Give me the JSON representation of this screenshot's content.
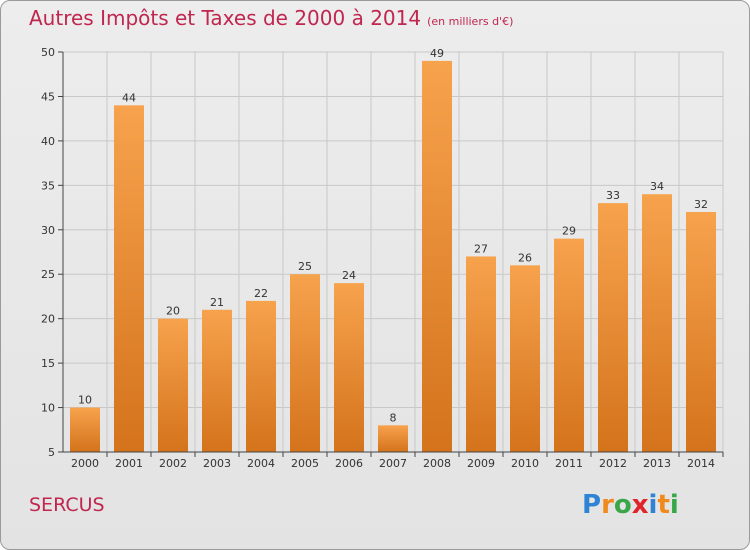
{
  "header": {
    "title": "Autres Impôts et Taxes de 2000 à 2014",
    "unit_note": "(en milliers d'€)"
  },
  "footer": {
    "commune": "SERCUS",
    "brand": "Proxiti"
  },
  "brand_letters": [
    {
      "char": "P",
      "color": "#2f83d4"
    },
    {
      "char": "r",
      "color": "#f08a1c"
    },
    {
      "char": "o",
      "color": "#3aa64a"
    },
    {
      "char": "x",
      "color": "#e0242c"
    },
    {
      "char": "i",
      "color": "#2f83d4"
    },
    {
      "char": "t",
      "color": "#f08a1c"
    },
    {
      "char": "i",
      "color": "#3aa64a"
    }
  ],
  "colors": {
    "title": "#c0264e",
    "bar_light": "#f7a24d",
    "bar_dark": "#d4731c",
    "grid": "#c8c8c8"
  },
  "chart_data": {
    "type": "bar",
    "categories": [
      "2000",
      "2001",
      "2002",
      "2003",
      "2004",
      "2005",
      "2006",
      "2007",
      "2008",
      "2009",
      "2010",
      "2011",
      "2012",
      "2013",
      "2014"
    ],
    "values": [
      10,
      44,
      20,
      21,
      22,
      25,
      24,
      8,
      49,
      27,
      26,
      29,
      33,
      34,
      32
    ],
    "ylim": [
      5,
      50
    ],
    "yticks": [
      5,
      10,
      15,
      20,
      25,
      30,
      35,
      40,
      45,
      50
    ],
    "grid": true,
    "legend": "none"
  }
}
